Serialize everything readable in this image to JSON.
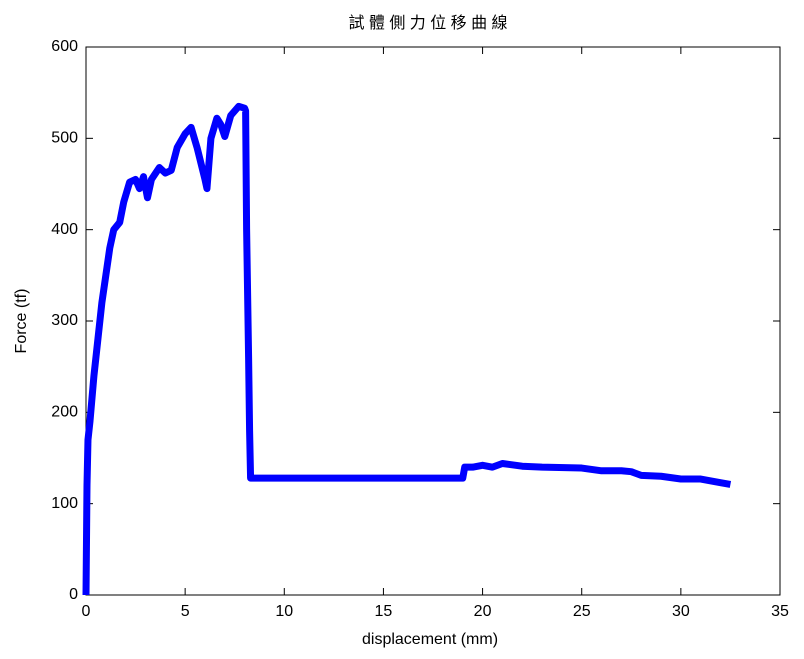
{
  "chart_data": {
    "type": "line",
    "title": "試 體 側 力 位 移 曲 線",
    "xlabel": "displacement (mm)",
    "ylabel": "Force (tf)",
    "color": "#0000ff",
    "x": [
      0,
      0.05,
      0.1,
      0.2,
      0.4,
      0.6,
      0.8,
      1.0,
      1.2,
      1.4,
      1.7,
      1.9,
      2.2,
      2.5,
      2.7,
      2.9,
      3.1,
      3.3,
      3.7,
      4.0,
      4.3,
      4.6,
      5.0,
      5.3,
      5.6,
      6.0,
      6.1,
      6.3,
      6.6,
      6.8,
      7.0,
      7.3,
      7.7,
      8.0,
      8.05,
      8.1,
      8.2,
      8.25,
      8.3,
      19.0,
      19.1,
      19.5,
      20,
      20.5,
      21,
      22,
      23,
      25,
      26,
      27,
      27.5,
      28,
      29,
      30,
      31,
      32,
      32.5
    ],
    "values": [
      0,
      120,
      170,
      190,
      240,
      280,
      320,
      350,
      380,
      400,
      408,
      430,
      452,
      455,
      445,
      458,
      435,
      455,
      468,
      462,
      465,
      490,
      505,
      512,
      490,
      455,
      445,
      500,
      522,
      515,
      502,
      525,
      535,
      533,
      530,
      400,
      260,
      180,
      128,
      128,
      140,
      140,
      142,
      140,
      144,
      141,
      140,
      139,
      136,
      136,
      135,
      131,
      130,
      127,
      127,
      123,
      121
    ],
    "xlim": [
      0,
      35
    ],
    "xticks": [
      0,
      5,
      10,
      15,
      20,
      25,
      30,
      35
    ],
    "ylim": [
      0,
      600
    ],
    "yticks": [
      0,
      100,
      200,
      300,
      400,
      500,
      600
    ]
  }
}
